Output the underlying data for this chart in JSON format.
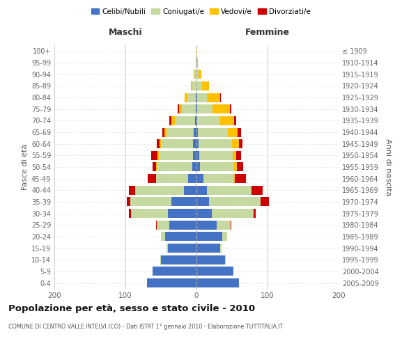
{
  "age_groups": [
    "100+",
    "95-99",
    "90-94",
    "85-89",
    "80-84",
    "75-79",
    "70-74",
    "65-69",
    "60-64",
    "55-59",
    "50-54",
    "45-49",
    "40-44",
    "35-39",
    "30-34",
    "25-29",
    "20-24",
    "15-19",
    "10-14",
    "5-9",
    "0-4"
  ],
  "birth_years": [
    "≤ 1909",
    "1910-1914",
    "1915-1919",
    "1920-1924",
    "1925-1929",
    "1930-1934",
    "1935-1939",
    "1940-1944",
    "1945-1949",
    "1950-1954",
    "1955-1959",
    "1960-1964",
    "1965-1969",
    "1970-1974",
    "1975-1979",
    "1980-1984",
    "1985-1989",
    "1990-1994",
    "1995-1999",
    "2000-2004",
    "2005-2009"
  ],
  "male_celibi": [
    0,
    0,
    0,
    0,
    1,
    1,
    2,
    4,
    5,
    5,
    6,
    12,
    18,
    35,
    40,
    38,
    44,
    40,
    50,
    62,
    70
  ],
  "male_coniugati": [
    0,
    1,
    3,
    6,
    12,
    20,
    28,
    38,
    45,
    48,
    50,
    45,
    68,
    58,
    52,
    18,
    6,
    2,
    1,
    0,
    0
  ],
  "male_vedovi": [
    0,
    0,
    1,
    2,
    4,
    4,
    5,
    3,
    2,
    2,
    1,
    0,
    0,
    0,
    0,
    0,
    0,
    0,
    0,
    0,
    0
  ],
  "male_divorziati": [
    0,
    0,
    0,
    0,
    0,
    1,
    3,
    3,
    4,
    9,
    5,
    12,
    9,
    5,
    3,
    1,
    0,
    0,
    0,
    0,
    0
  ],
  "female_nubili": [
    0,
    0,
    0,
    0,
    1,
    1,
    1,
    2,
    3,
    4,
    5,
    10,
    15,
    18,
    22,
    28,
    36,
    33,
    40,
    52,
    60
  ],
  "female_coniugate": [
    0,
    1,
    3,
    8,
    14,
    22,
    32,
    42,
    47,
    47,
    48,
    42,
    62,
    72,
    58,
    20,
    7,
    2,
    1,
    0,
    0
  ],
  "female_vedove": [
    1,
    1,
    4,
    10,
    18,
    24,
    20,
    14,
    10,
    5,
    4,
    2,
    0,
    0,
    0,
    0,
    0,
    0,
    0,
    0,
    0
  ],
  "female_divorziate": [
    0,
    0,
    0,
    0,
    1,
    2,
    3,
    5,
    5,
    7,
    9,
    16,
    16,
    12,
    3,
    1,
    0,
    0,
    0,
    0,
    0
  ],
  "colors": {
    "celibi": "#4472c4",
    "coniugati": "#c5d9a0",
    "vedovi": "#ffc000",
    "divorziati": "#cc0000"
  },
  "xlim": 200,
  "title": "Popolazione per età, sesso e stato civile - 2010",
  "subtitle": "COMUNE DI CENTRO VALLE INTELVI (CO) - Dati ISTAT 1° gennaio 2010 - Elaborazione TUTTITALIA.IT",
  "ylabel_left": "Fasce di età",
  "ylabel_right": "Anni di nascita",
  "xlabel_male": "Maschi",
  "xlabel_female": "Femmine",
  "legend_labels": [
    "Celibi/Nubili",
    "Coniugati/e",
    "Vedovi/e",
    "Divorziati/e"
  ],
  "background_color": "#ffffff",
  "bar_height": 0.78
}
